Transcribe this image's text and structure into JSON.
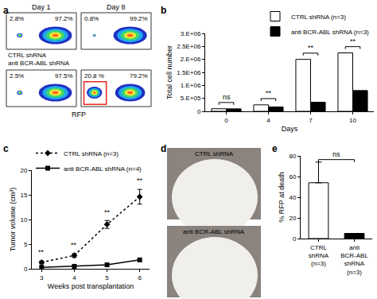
{
  "chart_data": [
    {
      "type": "flow_cytometry",
      "title": "a",
      "x_label": "RFP",
      "tick_labels": false,
      "columns": [
        "Day 1",
        "Day 8"
      ],
      "rows": [
        "CTRL shRNA",
        "anti BCR-ABL shRNA"
      ],
      "plots": [
        [
          {
            "values": [
              2.8,
              97.2
            ],
            "value_labels": [
              "2.8%",
              "97.2%"
            ]
          },
          {
            "values": [
              0.8,
              99.2
            ],
            "value_labels": [
              "0.8%",
              "99.2%"
            ]
          }
        ],
        [
          {
            "values": [
              2.5,
              97.5
            ],
            "value_labels": [
              "2.5%",
              "97.5%"
            ]
          },
          {
            "values": [
              20.8,
              79.2
            ],
            "value_labels": [
              "20.8 %",
              "79.2%"
            ],
            "color": "#e8281e"
          }
        ]
      ]
    },
    {
      "type": "bar",
      "title": "b",
      "x_label": "Days",
      "y_label": "Total cell number",
      "categories": [
        "0",
        "4",
        "7",
        "10"
      ],
      "series": [
        {
          "name": "CTRL shRNA (n=3)",
          "color": "#ffffff",
          "values": [
            100000,
            250000,
            2000000,
            2250000
          ]
        },
        {
          "name": "anti BCR-ABL shRNA (n=3)",
          "color": "#000000",
          "values": [
            95000,
            170000,
            350000,
            800000
          ]
        }
      ],
      "ylim": [
        0,
        3000000
      ],
      "yticks": [
        0,
        {
          "value": 500000,
          "label": "5.E+05"
        },
        {
          "value": 1000000,
          "label": "1.E+06"
        },
        {
          "value": 1500000,
          "label": "1.5E+06"
        },
        {
          "value": 2000000,
          "label": "2.E+06"
        },
        {
          "value": 2500000,
          "label": "2.5E+06"
        },
        {
          "value": 3000000,
          "label": "3.E+06"
        }
      ],
      "significance": [
        "ns",
        "**",
        "**",
        "**"
      ],
      "legend": "top right"
    },
    {
      "type": "line",
      "title": "c",
      "x_label": "Weeks post transplantation",
      "y_label": "Tumor volume (cm³)",
      "x": [
        3,
        4,
        5,
        6
      ],
      "series": [
        {
          "name": "CTRL shRNA (n=3)",
          "color": "#000000",
          "values": [
            1.3,
            2.7,
            9.0,
            14.6
          ],
          "errors": [
            0.3,
            0.4,
            0.8,
            1.5
          ],
          "marker": "diamond",
          "line_style": "dot"
        },
        {
          "name": "anti BCR-ABL shRNA (n=4)",
          "color": "#000000",
          "values": [
            0.3,
            0.5,
            0.8,
            1.8
          ],
          "marker": "square",
          "line_style": "solid"
        }
      ],
      "xlim": [
        2.7,
        6.3
      ],
      "xticks": [
        3,
        4,
        5,
        6
      ],
      "ylim": [
        0,
        20
      ],
      "yticks": [
        0,
        5,
        10,
        15,
        20
      ],
      "significance": [
        "**",
        "**",
        "**",
        "**"
      ],
      "legend": "top left"
    },
    {
      "type": "photo",
      "title": "d",
      "labels": [
        "CTRL shRNA",
        "anti BCR-ABL shRNA"
      ]
    },
    {
      "type": "bar",
      "title": "e",
      "y_label": "% RFP at death",
      "categories": [
        "CTRL shRNA (n=3)",
        "anti BCR-ABL shRNA (n=3)"
      ],
      "values": [
        54,
        5
      ],
      "errors": [
        20,
        0
      ],
      "colors": [
        "#ffffff",
        "#000000"
      ],
      "ylim": [
        0,
        80
      ],
      "yticks": [
        0,
        20,
        40,
        60,
        80
      ],
      "significance": [
        "ns"
      ]
    }
  ]
}
